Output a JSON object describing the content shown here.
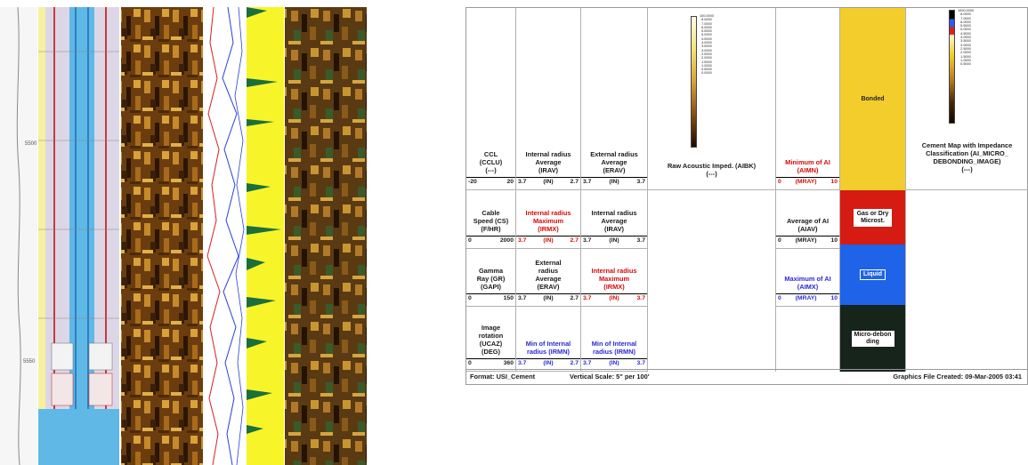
{
  "header": {
    "col1": [
      {
        "title": "CCL\n(CCLU)\n(---)",
        "scale": [
          "-20",
          "20"
        ],
        "color": "black"
      },
      {
        "title": "Cable\nSpeed (CS)\n(F/HR)",
        "scale": [
          "0",
          "2000"
        ],
        "color": "black"
      },
      {
        "title": "Gamma\nRay (GR)\n(GAPI)",
        "scale": [
          "0",
          "150"
        ],
        "color": "black"
      },
      {
        "title": "Image\nrotation\n(UCAZ)\n(DEG)",
        "scale": [
          "0",
          "360"
        ],
        "color": "black"
      }
    ],
    "col2": [
      {
        "title": "Internal radius\nAverage\n(IRAV)",
        "scale": [
          "3.7",
          "(IN)",
          "2.7"
        ],
        "color": "black"
      },
      {
        "title": "Internal radius\nMaximum\n(IRMX)",
        "scale": [
          "3.7",
          "(IN)",
          "2.7"
        ],
        "color": "red"
      },
      {
        "title": "External\nradius\nAverage\n(ERAV)",
        "scale": [
          "3.7",
          "(IN)",
          "2.7"
        ],
        "color": "black"
      },
      {
        "title": "Min of Internal\nradius (IRMN)",
        "scale": [
          "3.7",
          "(IN)",
          "2.7"
        ],
        "color": "blue"
      }
    ],
    "col3": [
      {
        "title": "External radius\nAverage\n(ERAV)",
        "scale": [
          "3.7",
          "(IN)",
          "3.7"
        ],
        "color": "black"
      },
      {
        "title": "Internal radius\nAverage\n(IRAV)",
        "scale": [
          "3.7",
          "(IN)",
          "3.7"
        ],
        "color": "black"
      },
      {
        "title": "Internal radius\nMaximum\n(IRMX)",
        "scale": [
          "3.7",
          "(IN)",
          "3.7"
        ],
        "color": "red"
      },
      {
        "title": "Min of Internal\nradius (IRMN)",
        "scale": [
          "3.7",
          "(IN)",
          "3.7"
        ],
        "color": "blue"
      }
    ],
    "col4": {
      "scale_labels": "100.0000\n8.0000\n7.0000\n6.0000\n5.5000\n5.0000\n4.5000\n4.0000\n3.5000\n3.0000\n2.5000\n2.0000\n1.5000\n1.0000\n0.5000\n0.0000",
      "caption": "Raw Acoustic Imped. (AIBK)\n(---)"
    },
    "col5": [
      {
        "title": "Minimum of AI\n(AIMN)",
        "scale": [
          "0",
          "(MRAY)",
          "10"
        ],
        "color": "red"
      },
      {
        "title": "Average of AI\n(AIAV)",
        "scale": [
          "0",
          "(MRAY)",
          "10"
        ],
        "color": "black"
      },
      {
        "title": "Maximum of AI\n(AIMX)",
        "scale": [
          "0",
          "(MRAY)",
          "10"
        ],
        "color": "blue"
      }
    ],
    "col6": [
      {
        "label": "Bonded",
        "bg": "#f3cd2c",
        "fg": "#222222",
        "boxed": false
      },
      {
        "label": "Gas or Dry\nMicrost.",
        "bg": "#d61b12",
        "fg": "#111111",
        "boxed": true,
        "label_bg": "#ffffff"
      },
      {
        "label": "Liquid",
        "bg": "#1e63e8",
        "fg": "#ffffff",
        "boxed": true
      },
      {
        "label": "Micro-debon\nding",
        "bg": "#17241c",
        "fg": "#111111",
        "boxed": false,
        "label_bg": "#ffffff"
      }
    ],
    "col7": {
      "scale_labels": "1000.0000\n8.0000\n7.0000\n6.0000\n5.5000\n5.0000\n4.5000\n4.0000\n3.5000\n3.0000\n2.5000\n2.0000\n1.5000\n1.0000\n0.5000",
      "caption": "Cement Map with Impedance\nClassification (AI_MICRO_\nDEBONDING_IMAGE)\n(---)"
    },
    "footer": {
      "format": "Format: USI_Cement",
      "scale": "Vertical Scale: 5\" per 100'",
      "created": "Graphics File Created: 09-Mar-2005 03:41"
    }
  },
  "colors": {
    "log_blue": "#5bb7e8",
    "log_yellow": "#f7f52a",
    "log_brown": "#7a4a12",
    "curve_red": "#d8201c",
    "curve_blue": "#2a3fd6",
    "curve_green": "#1c6f3a"
  }
}
